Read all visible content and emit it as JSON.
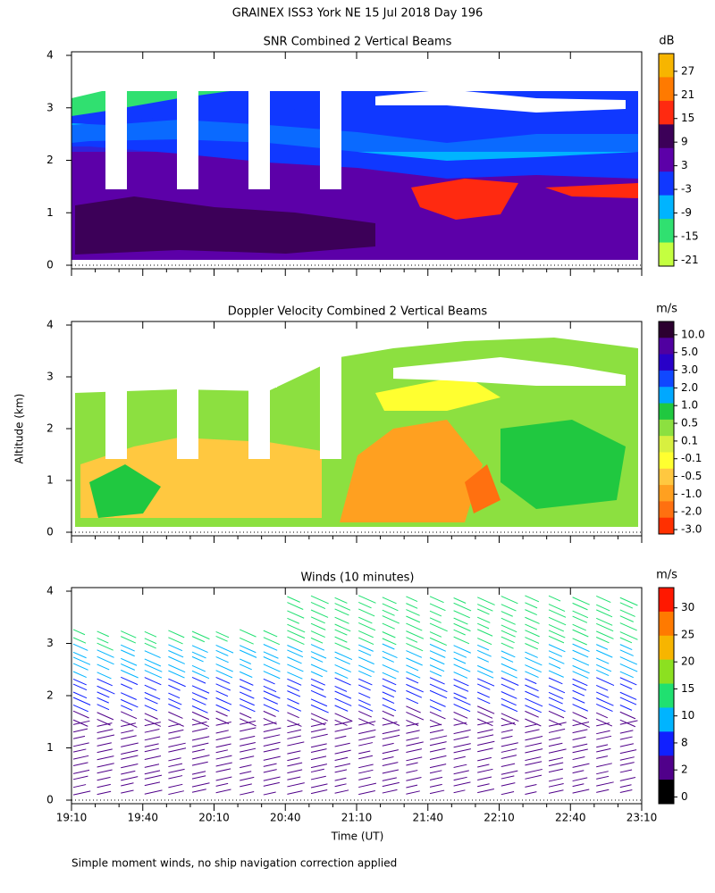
{
  "chart_data": [
    {
      "type": "heatmap",
      "title": "SNR Combined 2 Vertical Beams",
      "ylim": [
        0,
        4
      ],
      "yticks": [
        0,
        1,
        2,
        3,
        4
      ],
      "colorbar": {
        "label": "dB",
        "ticks": [
          27,
          21,
          15,
          9,
          3,
          -3,
          -9,
          -15,
          -21
        ],
        "colors": [
          "#f7b500",
          "#ff7a00",
          "#ff2a10",
          "#3c0058",
          "#5c00a8",
          "#1038ff",
          "#00b4ff",
          "#30e070",
          "#c4ff40"
        ]
      }
    },
    {
      "type": "heatmap",
      "title": "Doppler Velocity Combined 2 Vertical Beams",
      "ylim": [
        0,
        4
      ],
      "yticks": [
        0,
        1,
        2,
        3,
        4
      ],
      "colorbar": {
        "label": "m/s",
        "ticks": [
          {
            "value": 10,
            "label": "10.0"
          },
          {
            "value": 5,
            "label": "5.0"
          },
          {
            "value": 3,
            "label": "3.0"
          },
          {
            "value": 2,
            "label": "2.0"
          },
          {
            "value": 1,
            "label": "1.0"
          },
          0.5,
          0.1,
          -0.1,
          -0.5,
          {
            "value": -1,
            "label": "-1.0"
          },
          {
            "value": -2,
            "label": "-2.0"
          },
          {
            "value": -3,
            "label": "-3.0"
          }
        ],
        "colors": [
          "#2c0030",
          "#5000a0",
          "#2800c8",
          "#1048ff",
          "#00a8ff",
          "#20c840",
          "#8ce040",
          "#d8f040",
          "#ffff30",
          "#ffc840",
          "#ffa020",
          "#ff7010",
          "#ff3000"
        ]
      }
    },
    {
      "type": "barbs",
      "title": "Winds (10 minutes)",
      "ylim": [
        0,
        4
      ],
      "yticks": [
        0,
        1,
        2,
        3,
        4
      ],
      "x_label": "Time (UT)",
      "xticks": [
        "19:10",
        "19:40",
        "20:10",
        "20:40",
        "21:10",
        "21:40",
        "22:10",
        "22:40",
        "23:10"
      ],
      "colorbar": {
        "label": "m/s",
        "ticks": [
          30,
          25,
          20,
          15,
          10,
          8,
          2,
          0
        ],
        "colors": [
          "#ff1800",
          "#ff7a00",
          "#f7b500",
          "#8ce020",
          "#20e070",
          "#00b4ff",
          "#1020ff",
          "#50008a",
          "#000000"
        ]
      }
    }
  ],
  "title": "GRAINEX ISS3 York NE  15 Jul 2018 Day 196",
  "y_label": "Altitude (km)",
  "footnote": "Simple moment winds, no ship navigation correction applied"
}
